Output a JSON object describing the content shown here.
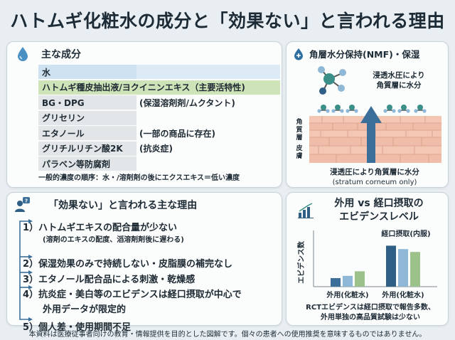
{
  "title": "ハトムギ化粧水の成分と「効果ない」と言われる理由",
  "colors": {
    "green": "#cfe3b8",
    "blue": "#cfe2f1",
    "grey": "#e3e6e8",
    "arrow": "#3b6f99",
    "bar_light_blue": "#8fb8d6",
    "bar_dark_blue": "#2f5f85"
  },
  "ingredients": {
    "heading": "主な成分",
    "rows": [
      {
        "name": "水",
        "note": "",
        "style": "blue"
      },
      {
        "name": "ハトムギ種皮抽出液/ヨクイニンエキス（主要活特性)",
        "note": "",
        "style": "green"
      },
      {
        "name": "BG・DPG",
        "note": "(保湿溶剤剤/ムクタント)",
        "style": "grey"
      },
      {
        "name": "グリセリン",
        "note": "",
        "style": "grey"
      },
      {
        "name": "エタノール",
        "note": "(一部の商品に存在)",
        "style": "grey"
      },
      {
        "name": "グリチルリチン酸2K",
        "note": "(抗炎症)",
        "style": "grey"
      },
      {
        "name": "パラベン等防腐剤",
        "note": "",
        "style": "grey"
      }
    ],
    "footnote": "一般的濃度の順序：水・/溶剤剤の後にエクスエキス＝低い濃度"
  },
  "nmf": {
    "heading": "角層水分保持(NMF)・保湿",
    "top_caption_1": "浸透水圧により",
    "top_caption_2": "角質層に水分",
    "side_label_1": "角",
    "side_label_2": "質",
    "side_label_3": "層",
    "side_label_4": "皮",
    "side_label_5": "膚",
    "bottom_caption_1": "浸透圧により角質層に水分",
    "bottom_caption_2": "(stratum corneum only)"
  },
  "reasons": {
    "heading": "「効果ない」と言われる主な理由",
    "items": [
      {
        "text": "1）ハトムギエキスの配合量が少ない",
        "sub": "(溶剤のエキスの配度、滔溶剤剤後に遅わる)"
      },
      {
        "text": "2）保湿効果のみで持続しない・皮脂膜の補完なし",
        "sub": ""
      },
      {
        "text": "3）エタノール配合品による刺激・乾燥感",
        "sub": ""
      },
      {
        "text": "4）抗炎症・美白等のエビデンスは経口摂取が中心で",
        "sub": ""
      },
      {
        "text": "外用データが限定的",
        "sub": ""
      },
      {
        "text": "5）個人差・使用期間不足",
        "sub": ""
      }
    ]
  },
  "evidence": {
    "heading_1": "外用 vs 経口摂取の",
    "heading_2": "エビデンスレベル",
    "oral_label": "経口摂取(内服)",
    "caption_1": "RCTエビデンスは経口摂取で報告多数、",
    "caption_2": "外用単独の高品質試験は少ない"
  },
  "chart_data": {
    "type": "bar",
    "ylabel": "エビデンス数",
    "categories": [
      "外用(化粧水)",
      "外用(化粧水)"
    ],
    "series": [
      {
        "values": [
          1.5,
          7.2
        ]
      },
      {
        "values": [
          1.9,
          6.6
        ]
      },
      {
        "values": [
          2.7,
          6.1
        ]
      }
    ],
    "ylim": [
      0,
      10
    ]
  },
  "footer": "本資料は医療従事者向けの教育・情報提供を目的とした図解です。個々の患者への使用推奨を意味するものではありません。"
}
